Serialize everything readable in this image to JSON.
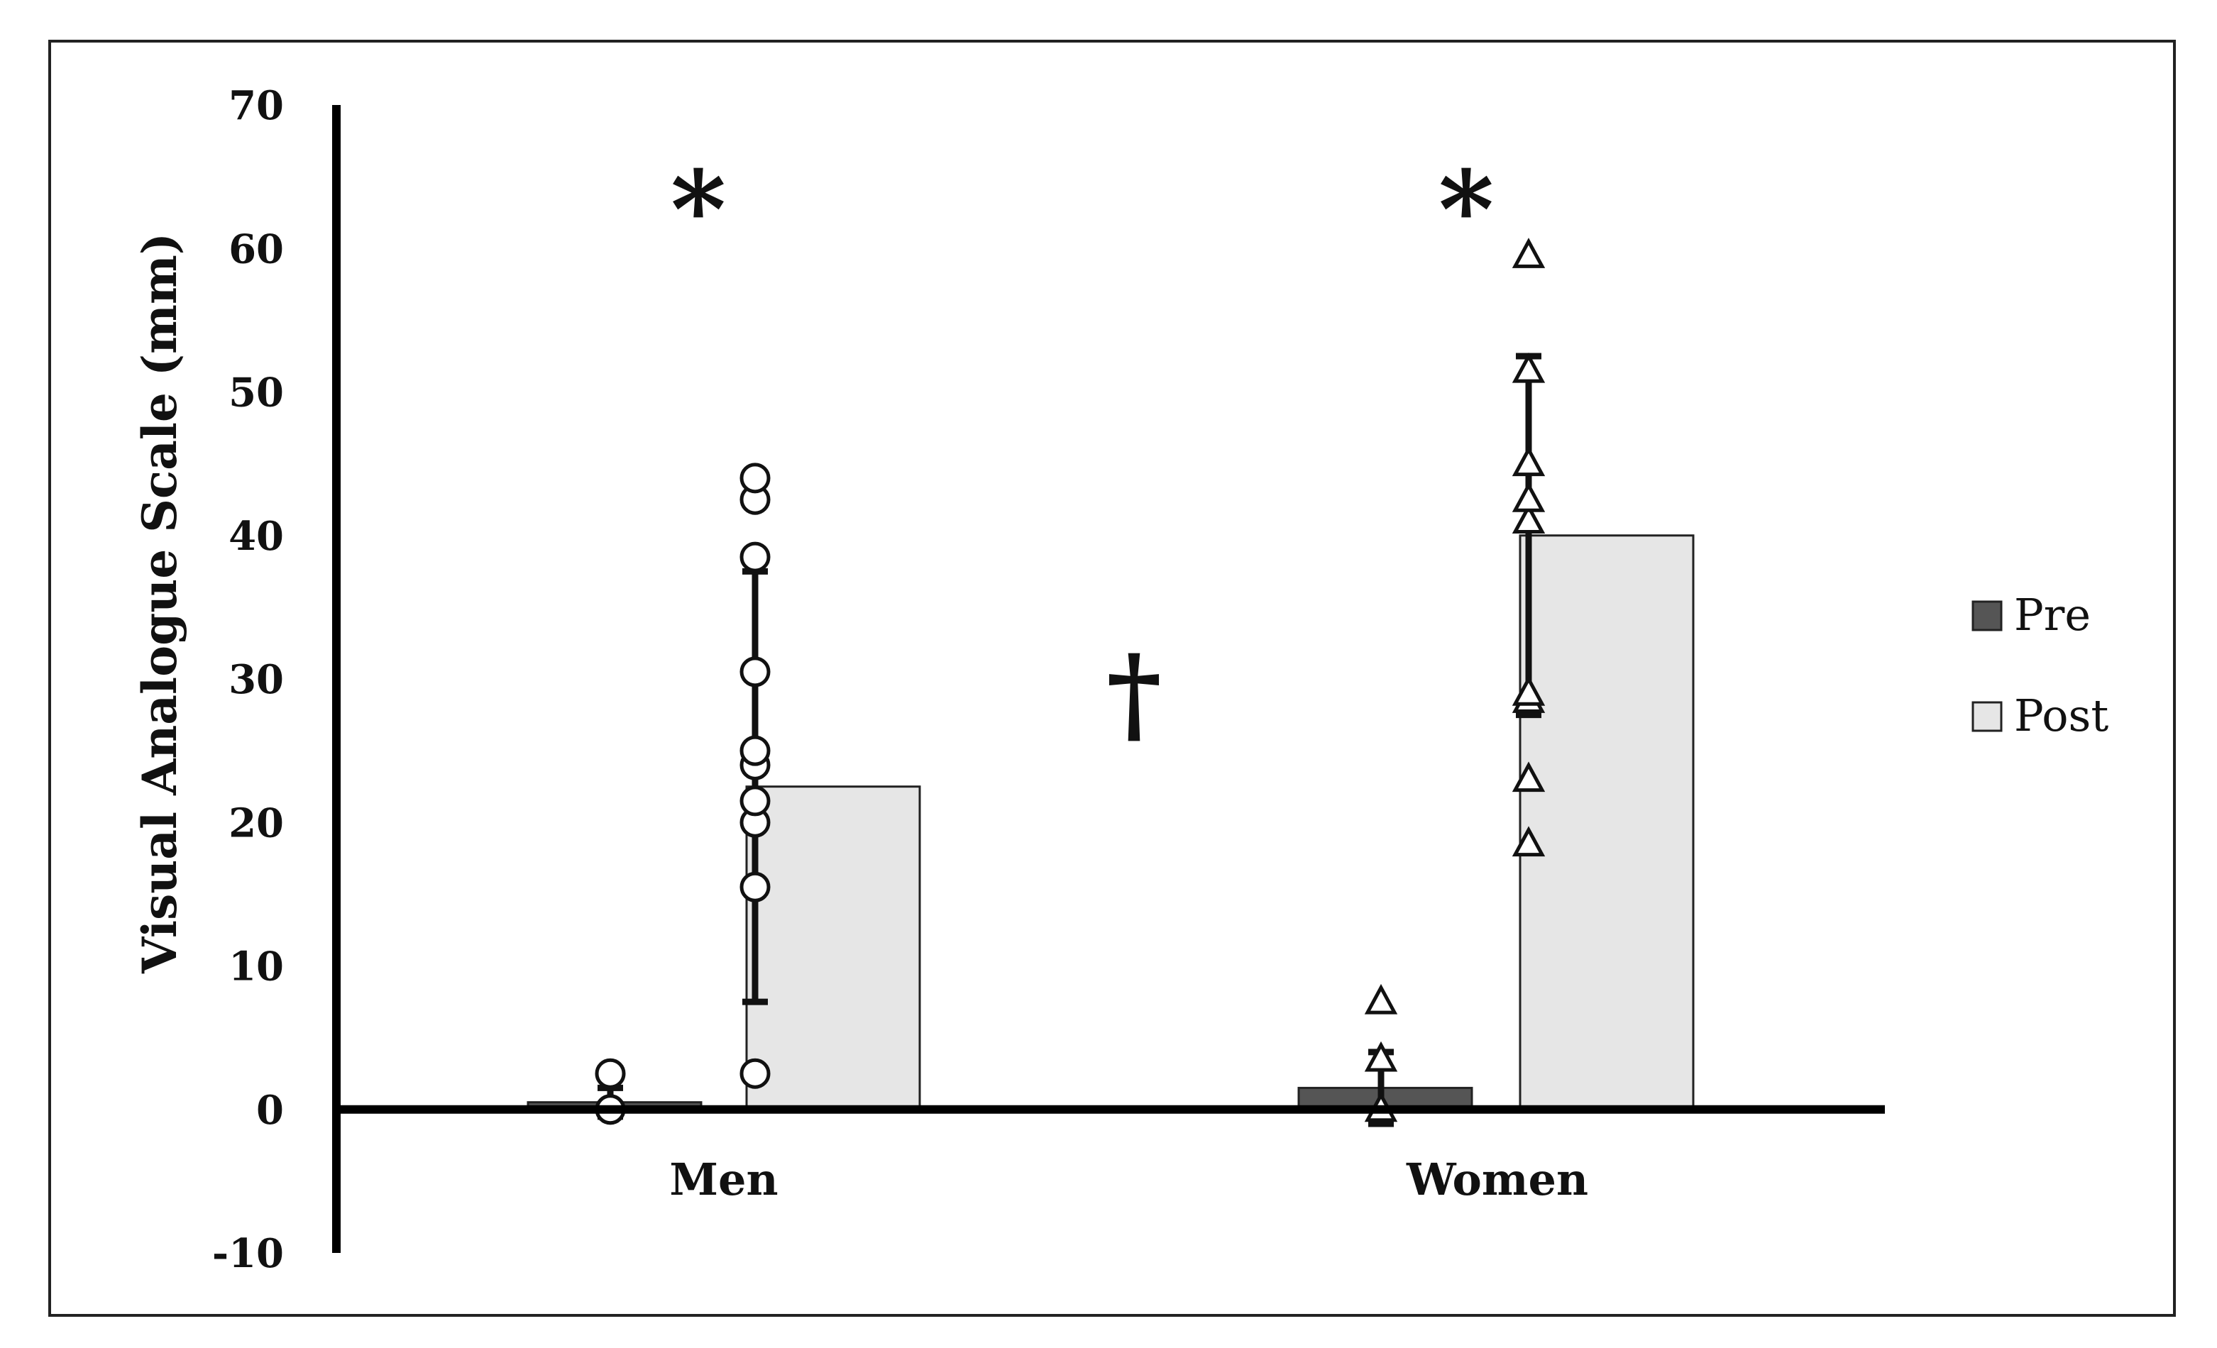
{
  "chart_data": {
    "type": "bar",
    "categories": [
      "Men",
      "Women"
    ],
    "ylabel": "Visual Analogue Scale (mm)",
    "ylim": [
      -10,
      70
    ],
    "yticks": [
      70,
      60,
      50,
      40,
      30,
      20,
      10,
      0,
      -10
    ],
    "grid": false,
    "legend_position": "right",
    "series": [
      {
        "name": "Pre",
        "color": "#555555",
        "values": [
          0.5,
          1.5
        ],
        "error": [
          1.0,
          2.5
        ],
        "points": [
          [
            0,
            0,
            2.5
          ],
          [
            0,
            3.5,
            7.5
          ]
        ]
      },
      {
        "name": "Post",
        "color": "#e6e6e6",
        "values": [
          22.5,
          40.0
        ],
        "error": [
          15.0,
          12.5
        ],
        "points": [
          [
            2.5,
            15.5,
            20,
            21.5,
            24,
            25,
            30.5,
            38.5,
            42.5,
            44
          ],
          [
            18.5,
            23,
            28.5,
            29,
            41,
            42.5,
            45,
            51.5,
            59.5
          ]
        ]
      }
    ],
    "marker_shapes": [
      "circle",
      "triangle"
    ],
    "annotations": {
      "men_star": "*",
      "women_star": "*",
      "dagger": "†"
    }
  }
}
